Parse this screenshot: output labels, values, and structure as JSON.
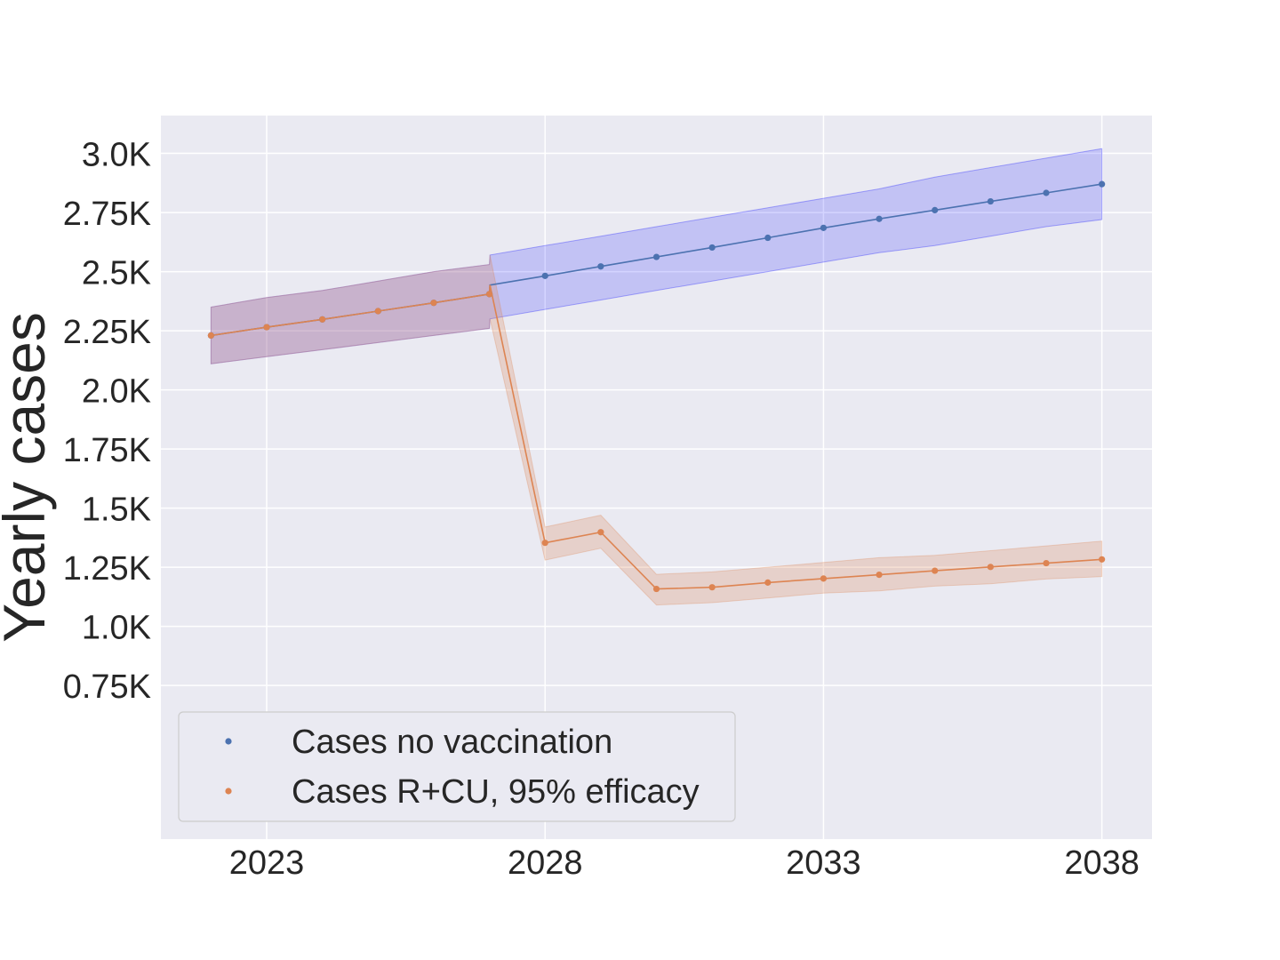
{
  "chart_data": {
    "type": "line",
    "ylabel": "Yearly cases",
    "xlabel": "",
    "title": "",
    "x": [
      2022,
      2023,
      2024,
      2025,
      2026,
      2027,
      2028,
      2029,
      2030,
      2031,
      2032,
      2033,
      2034,
      2035,
      2036,
      2037,
      2038
    ],
    "x_ticks": [
      2023,
      2028,
      2033,
      2038
    ],
    "x_tick_labels": [
      "2023",
      "2028",
      "2033",
      "2038"
    ],
    "xlim": [
      2021.1,
      2038.9
    ],
    "ylim": [
      0.1,
      3.16
    ],
    "y_ticks": [
      0.75,
      1.0,
      1.25,
      1.5,
      1.75,
      2.0,
      2.25,
      2.5,
      2.75,
      3.0
    ],
    "y_tick_labels": [
      "0.75K",
      "1.0K",
      "1.25K",
      "1.5K",
      "1.75K",
      "2.0K",
      "2.25K",
      "2.5K",
      "2.75K",
      "3.0K"
    ],
    "y_unit": "thousands of cases",
    "grid": true,
    "legend_position": "lower-left",
    "series": [
      {
        "name": "Cases no vaccination",
        "color": "#4c72b0",
        "band_color": "#0000ff",
        "values": [
          2.23,
          2.265,
          2.298,
          2.333,
          2.368,
          2.405,
          2.443,
          2.482,
          2.522,
          2.562,
          2.602,
          2.643,
          2.685,
          2.723,
          2.76,
          2.797,
          2.833,
          2.87
        ],
        "x_values": [
          2022,
          2023,
          2024,
          2025,
          2026,
          2027,
          2027.01,
          2028,
          2029,
          2030,
          2031,
          2032,
          2033,
          2034,
          2035,
          2036,
          2037,
          2038
        ],
        "lower": [
          2.11,
          2.14,
          2.17,
          2.2,
          2.23,
          2.26,
          2.3,
          2.34,
          2.38,
          2.42,
          2.46,
          2.5,
          2.54,
          2.58,
          2.61,
          2.65,
          2.69,
          2.72
        ],
        "upper": [
          2.35,
          2.39,
          2.42,
          2.46,
          2.5,
          2.53,
          2.57,
          2.61,
          2.65,
          2.69,
          2.73,
          2.77,
          2.81,
          2.85,
          2.9,
          2.94,
          2.98,
          3.02
        ]
      },
      {
        "name": "Cases R+CU, 95% efficacy",
        "color": "#dd8452",
        "band_color": "#dd8452",
        "values": [
          2.23,
          2.265,
          2.298,
          2.333,
          2.368,
          2.405,
          2.443,
          1.353,
          1.398,
          1.158,
          1.165,
          1.185,
          1.202,
          1.218,
          1.235,
          1.251,
          1.267,
          1.283
        ],
        "x_values": [
          2022,
          2023,
          2024,
          2025,
          2026,
          2027,
          2027.01,
          2028,
          2029,
          2030,
          2031,
          2032,
          2033,
          2034,
          2035,
          2036,
          2037,
          2038
        ],
        "lower": [
          2.11,
          2.14,
          2.17,
          2.2,
          2.23,
          2.26,
          2.3,
          1.28,
          1.33,
          1.09,
          1.1,
          1.12,
          1.14,
          1.15,
          1.17,
          1.18,
          1.2,
          1.21
        ],
        "upper": [
          2.35,
          2.39,
          2.42,
          2.46,
          2.5,
          2.53,
          2.57,
          1.42,
          1.47,
          1.22,
          1.23,
          1.25,
          1.27,
          1.29,
          1.3,
          1.32,
          1.34,
          1.36
        ]
      }
    ]
  }
}
